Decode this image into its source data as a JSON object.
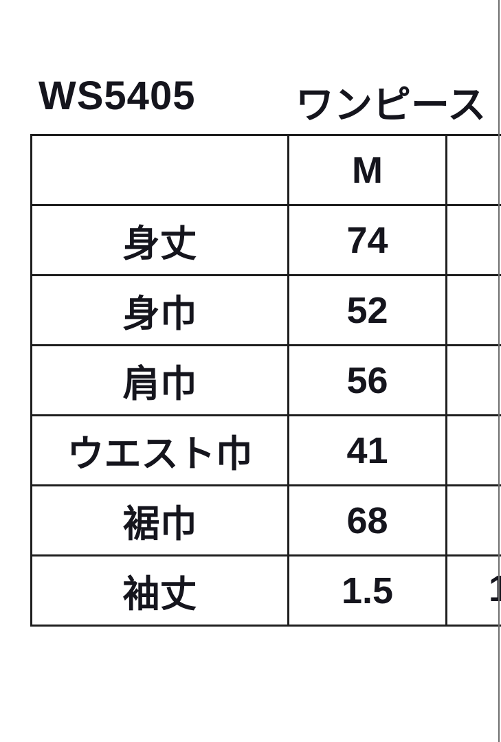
{
  "meta": {
    "background_color": "#ffffff",
    "table_border_color": "#1e1e1e",
    "text_color": "#15151d",
    "photo_edge_line_color": "#6f6f6f"
  },
  "title": {
    "product_code": "WS5405",
    "product_name": "ワンピース"
  },
  "table": {
    "columns": [
      "",
      "M",
      ""
    ],
    "rows": [
      {
        "label": "身丈",
        "m": "74"
      },
      {
        "label": "身巾",
        "m": "52"
      },
      {
        "label": "肩巾",
        "m": "56"
      },
      {
        "label": "ウエスト巾",
        "m": "41"
      },
      {
        "label": "裾巾",
        "m": "68"
      },
      {
        "label": "袖丈",
        "m": "1.5"
      }
    ],
    "next_column_partial": {
      "visible_fragment": "1",
      "row_label": "袖丈"
    }
  }
}
